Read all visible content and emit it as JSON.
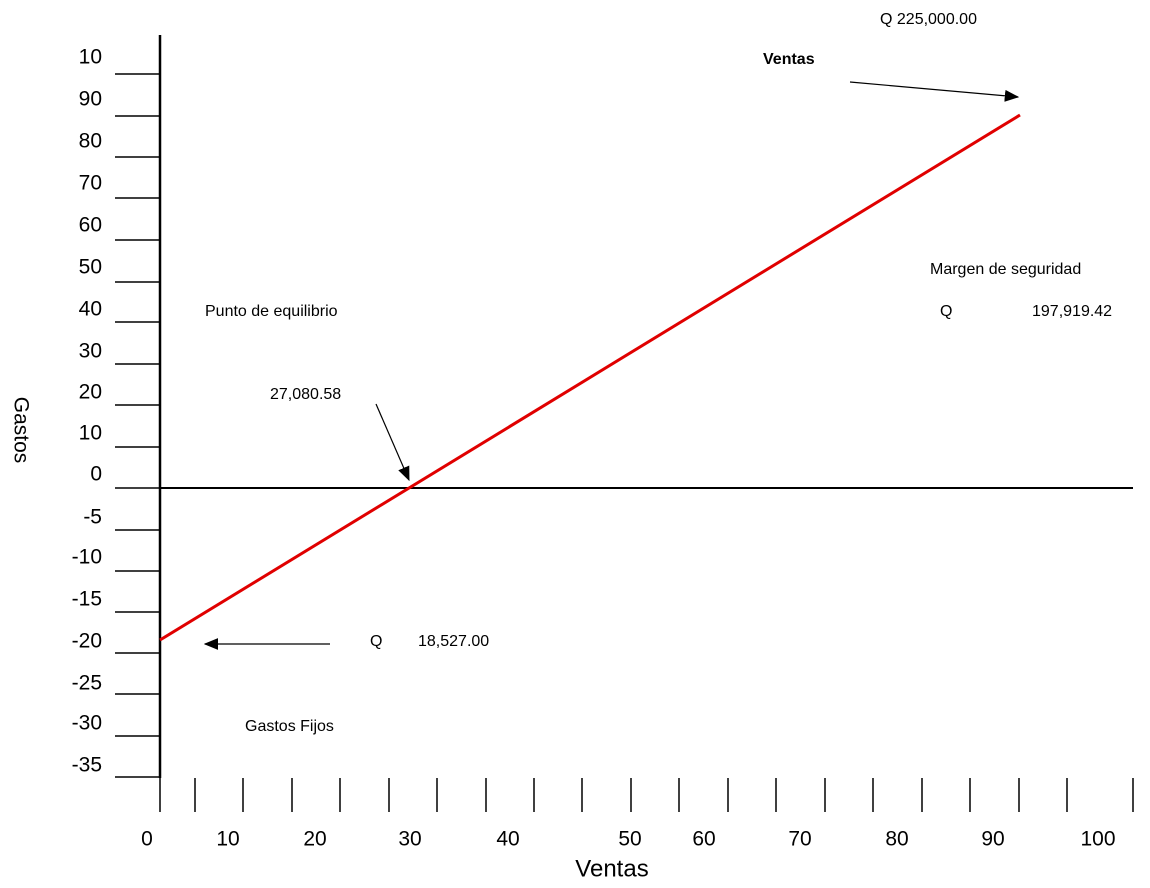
{
  "axis_labels": {
    "y": "Gastos",
    "x": "Ventas"
  },
  "y_labels": [
    "10",
    "90",
    "80",
    "70",
    "60",
    "50",
    "40",
    "30",
    "20",
    "10",
    "0",
    "-5",
    "-10",
    "-15",
    "-20",
    "-25",
    "-30",
    "-35"
  ],
  "x_labels": [
    "0",
    "10",
    "20",
    "30",
    "40",
    "50",
    "60",
    "70",
    "80",
    "90",
    "100"
  ],
  "annotations": {
    "sales_value": "Q  225,000.00",
    "sales_label": "Ventas",
    "margin_label": "Margen de seguridad",
    "margin_currency": "Q",
    "margin_value": "197,919.42",
    "breakeven_label": "Punto de equilibrio",
    "breakeven_value": "27,080.58",
    "fixed_currency": "Q",
    "fixed_value": "18,527.00",
    "fixed_label": "Gastos Fijos"
  }
}
